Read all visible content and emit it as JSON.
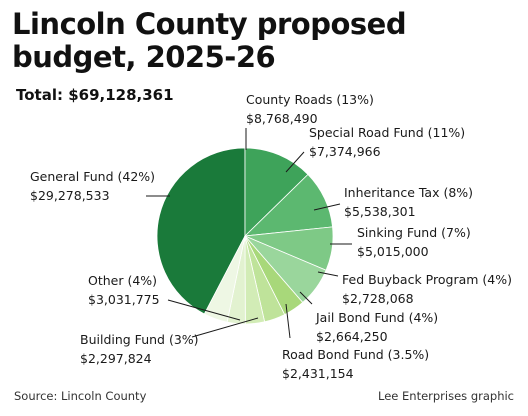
{
  "header": {
    "title_line1": "Lincoln County proposed",
    "title_line2": "budget, 2025-26",
    "total": "Total: $69,128,361"
  },
  "footer": {
    "source": "Source: Lincoln County",
    "credit": "Lee Enterprises graphic"
  },
  "chart_data": {
    "type": "pie",
    "title": "Lincoln County proposed budget, 2025-26",
    "total": 69128361,
    "slices": [
      {
        "name": "General Fund (42%)",
        "value_label": "$29,278,533",
        "value": 29278533,
        "color": "#1a7a3a"
      },
      {
        "name": "County Roads (13%)",
        "value_label": "$8,768,490",
        "value": 8768490,
        "color": "#3ea35a"
      },
      {
        "name": "Special Road Fund (11%)",
        "value_label": "$7,374,966",
        "value": 7374966,
        "color": "#5cb870"
      },
      {
        "name": "Inheritance Tax (8%)",
        "value_label": "$5,538,301",
        "value": 5538301,
        "color": "#7ec986"
      },
      {
        "name": "Sinking Fund (7%)",
        "value_label": "$5,015,000",
        "value": 5015000,
        "color": "#9ad69c"
      },
      {
        "name": "Fed Buyback Program (4%)",
        "value_label": "$2,728,068",
        "value": 2728068,
        "color": "#a8d87a"
      },
      {
        "name": "Jail Bond Fund (4%)",
        "value_label": "$2,664,250",
        "value": 2664250,
        "color": "#bfe39a"
      },
      {
        "name": "Road Bond Fund (3.5%)",
        "value_label": "$2,431,154",
        "value": 2431154,
        "color": "#d2ecb6"
      },
      {
        "name": "Building Fund (3%)",
        "value_label": "$2,297,824",
        "value": 2297824,
        "color": "#e2f2d0"
      },
      {
        "name": "Other (4%)",
        "value_label": "$3,031,775",
        "value": 3031775,
        "color": "#eef7e4"
      }
    ]
  }
}
